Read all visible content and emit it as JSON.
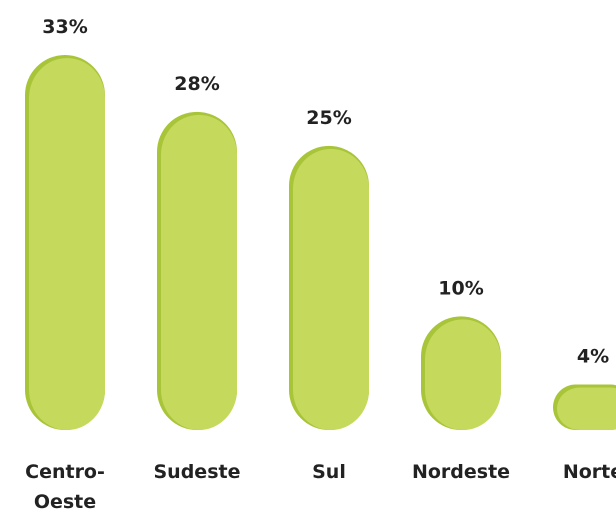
{
  "chart_data": {
    "type": "bar",
    "categories": [
      "Centro-Oeste",
      "Sudeste",
      "Sul",
      "Nordeste",
      "Norte"
    ],
    "values": [
      33,
      28,
      25,
      10,
      4
    ],
    "value_labels": [
      "33%",
      "28%",
      "25%",
      "10%",
      "4%"
    ],
    "color": "#c5d95c"
  }
}
